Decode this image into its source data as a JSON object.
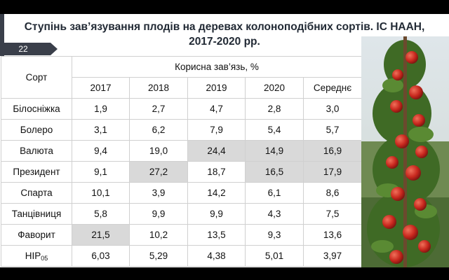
{
  "slide": {
    "title_line1": "Ступінь зав’язування плодів на деревах колоноподібних сортів. ІС НААН,",
    "title_line2": "2017-2020 рр.",
    "number": "22"
  },
  "table": {
    "header_sort": "Сорт",
    "header_group": "Корисна зав’язь, %",
    "years": [
      "2017",
      "2018",
      "2019",
      "2020",
      "Середнє"
    ],
    "rows": [
      {
        "name": "Білосніжка",
        "values": [
          "1,9",
          "2,7",
          "4,7",
          "2,8",
          "3,0"
        ]
      },
      {
        "name": "Болеро",
        "values": [
          "3,1",
          "6,2",
          "7,9",
          "5,4",
          "5,7"
        ]
      },
      {
        "name": "Валюта",
        "values": [
          "9,4",
          "19,0",
          "24,4",
          "14,9",
          "16,9"
        ]
      },
      {
        "name": "Президент",
        "values": [
          "9,1",
          "27,2",
          "18,7",
          "16,5",
          "17,9"
        ]
      },
      {
        "name": "Спарта",
        "values": [
          "10,1",
          "3,9",
          "14,2",
          "6,1",
          "8,6"
        ]
      },
      {
        "name": "Танцівниця",
        "values": [
          "5,8",
          "9,9",
          "9,9",
          "4,3",
          "7,5"
        ]
      },
      {
        "name": "Фаворит",
        "values": [
          "21,5",
          "10,2",
          "13,5",
          "9,3",
          "13,6"
        ]
      }
    ],
    "hir_label": "НІР",
    "hir_sub": "05",
    "hir_values": [
      "6,03",
      "5,29",
      "4,38",
      "5,01",
      "3,97"
    ],
    "highlight_color": "#d9d9d9"
  }
}
